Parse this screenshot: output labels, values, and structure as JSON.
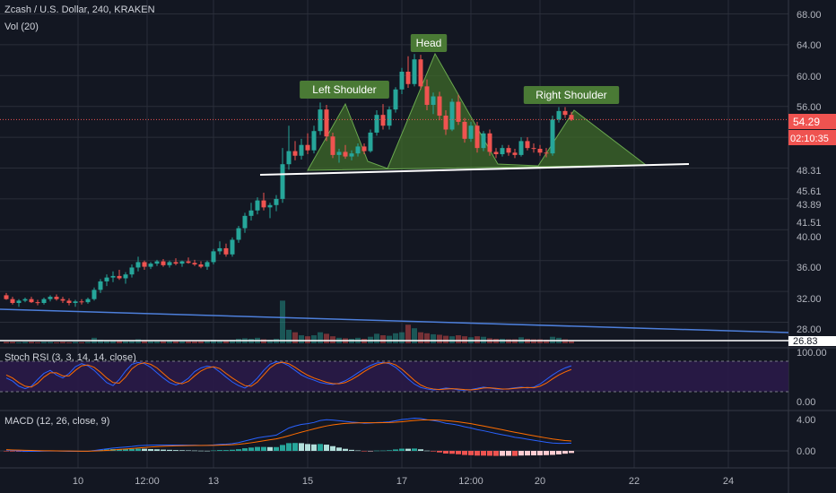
{
  "header": {
    "title": "Zcash / U.S. Dollar, 240, KRAKEN",
    "volume_label": "Vol (20)"
  },
  "panes": {
    "stoch_label": "Stoch RSI (3, 3, 14, 14, close)",
    "macd_label": "MACD (12, 26, close, 9)"
  },
  "annotations": {
    "head": "Head",
    "left_shoulder": "Left Shoulder",
    "right_shoulder": "Right Shoulder"
  },
  "price_axis": {
    "ticks": [
      "68.00",
      "64.00",
      "60.00",
      "56.00",
      "48.31",
      "45.61",
      "43.89",
      "41.51",
      "40.00",
      "36.00",
      "32.00",
      "28.00"
    ],
    "last_price": "54.29",
    "countdown": "02:10:35",
    "volume_level": "26.83"
  },
  "stoch_axis": {
    "ticks": [
      "100.00",
      "0.00"
    ]
  },
  "macd_axis": {
    "ticks": [
      "4.00",
      "0.00"
    ]
  },
  "time_axis": {
    "labels": [
      "10",
      "12:00",
      "13",
      "15",
      "17",
      "12:00",
      "20",
      "22",
      "24"
    ]
  },
  "colors": {
    "background": "#131722",
    "grid": "#2a2e39",
    "up": "#26a69a",
    "down": "#ef5350",
    "pattern_fill": "#3f6b2a",
    "label_bg": "#4a7a35",
    "trend_blue": "#4d7fdb",
    "neckline": "#ffffff",
    "stoch_band": "#2a1a48",
    "price_badge": "#ef5350"
  },
  "chart_data": {
    "type": "candlestick",
    "title": "Zcash / U.S. Dollar, 240, KRAKEN",
    "price_range": [
      27,
      69
    ],
    "interval": "240",
    "pattern": "Head and Shoulders",
    "candles": [
      [
        31.5,
        31.8,
        30.9,
        31.0
      ],
      [
        31.0,
        31.3,
        30.3,
        30.5
      ],
      [
        30.5,
        31.0,
        30.0,
        30.8
      ],
      [
        30.8,
        31.2,
        30.6,
        31.0
      ],
      [
        31.0,
        31.3,
        30.5,
        30.6
      ],
      [
        30.6,
        30.9,
        30.2,
        30.5
      ],
      [
        30.5,
        31.2,
        30.3,
        31.0
      ],
      [
        31.0,
        31.5,
        30.7,
        31.3
      ],
      [
        31.3,
        31.6,
        30.8,
        31.0
      ],
      [
        31.0,
        31.3,
        30.5,
        30.8
      ],
      [
        30.8,
        31.1,
        30.2,
        30.5
      ],
      [
        30.5,
        30.9,
        30.0,
        30.7
      ],
      [
        30.7,
        31.0,
        30.3,
        30.6
      ],
      [
        30.6,
        31.2,
        30.4,
        31.0
      ],
      [
        31.0,
        32.5,
        30.8,
        32.2
      ],
      [
        32.2,
        33.6,
        31.8,
        33.3
      ],
      [
        33.3,
        34.2,
        32.7,
        33.8
      ],
      [
        33.8,
        34.6,
        33.2,
        34.0
      ],
      [
        34.0,
        34.8,
        33.5,
        33.7
      ],
      [
        33.7,
        34.5,
        33.0,
        34.2
      ],
      [
        34.2,
        35.5,
        33.8,
        35.1
      ],
      [
        35.1,
        36.5,
        34.6,
        35.8
      ],
      [
        35.8,
        36.0,
        34.8,
        35.2
      ],
      [
        35.2,
        35.8,
        34.9,
        35.6
      ],
      [
        35.6,
        36.1,
        35.3,
        35.9
      ],
      [
        35.9,
        36.2,
        35.2,
        35.4
      ],
      [
        35.4,
        36.0,
        35.1,
        35.8
      ],
      [
        35.8,
        36.3,
        35.4,
        35.6
      ],
      [
        35.6,
        36.0,
        35.2,
        35.9
      ],
      [
        35.9,
        36.4,
        35.6,
        35.7
      ],
      [
        35.7,
        36.1,
        35.3,
        35.5
      ],
      [
        35.5,
        35.9,
        35.0,
        35.2
      ],
      [
        35.2,
        36.0,
        34.8,
        35.8
      ],
      [
        35.8,
        37.5,
        35.5,
        37.2
      ],
      [
        37.2,
        38.5,
        36.8,
        37.6
      ],
      [
        37.6,
        38.2,
        36.5,
        36.8
      ],
      [
        36.8,
        39.0,
        36.5,
        38.7
      ],
      [
        38.7,
        40.5,
        38.3,
        40.2
      ],
      [
        40.2,
        42.2,
        39.6,
        41.8
      ],
      [
        41.8,
        43.5,
        41.2,
        42.5
      ],
      [
        42.5,
        44.2,
        42.0,
        43.8
      ],
      [
        43.8,
        44.8,
        42.5,
        42.9
      ],
      [
        42.9,
        43.5,
        41.5,
        43.2
      ],
      [
        43.2,
        44.5,
        42.4,
        44.0
      ],
      [
        44.0,
        50.6,
        43.5,
        48.5
      ],
      [
        48.5,
        53.5,
        47.8,
        50.2
      ],
      [
        50.2,
        51.5,
        49.0,
        49.6
      ],
      [
        49.6,
        51.8,
        49.1,
        51.0
      ],
      [
        51.0,
        52.5,
        49.8,
        50.3
      ],
      [
        50.3,
        53.5,
        49.9,
        52.8
      ],
      [
        52.8,
        56.5,
        52.3,
        55.6
      ],
      [
        55.6,
        56.2,
        51.5,
        52.1
      ],
      [
        52.1,
        52.6,
        49.3,
        49.7
      ],
      [
        49.7,
        50.5,
        48.7,
        50.1
      ],
      [
        50.1,
        51.0,
        49.2,
        49.5
      ],
      [
        49.5,
        50.3,
        49.0,
        49.9
      ],
      [
        49.9,
        51.2,
        49.5,
        50.8
      ],
      [
        50.8,
        51.2,
        49.8,
        50.2
      ],
      [
        50.2,
        53.0,
        50.0,
        52.6
      ],
      [
        52.6,
        55.5,
        52.2,
        54.9
      ],
      [
        54.9,
        56.3,
        53.0,
        53.5
      ],
      [
        53.5,
        56.0,
        53.0,
        55.6
      ],
      [
        55.6,
        58.5,
        55.2,
        58.2
      ],
      [
        58.2,
        61.0,
        57.6,
        60.5
      ],
      [
        60.5,
        62.5,
        58.4,
        58.9
      ],
      [
        58.9,
        62.8,
        58.6,
        62.1
      ],
      [
        62.1,
        62.7,
        58.2,
        58.6
      ],
      [
        58.6,
        59.5,
        55.5,
        56.2
      ],
      [
        56.2,
        57.8,
        55.0,
        57.3
      ],
      [
        57.3,
        57.9,
        54.2,
        54.8
      ],
      [
        54.8,
        55.5,
        52.3,
        53.0
      ],
      [
        53.0,
        57.0,
        52.8,
        56.6
      ],
      [
        56.6,
        57.5,
        53.6,
        54.0
      ],
      [
        54.0,
        54.5,
        51.3,
        51.8
      ],
      [
        51.8,
        54.0,
        51.4,
        53.5
      ],
      [
        53.5,
        54.0,
        50.0,
        50.6
      ],
      [
        50.6,
        52.8,
        50.2,
        52.5
      ],
      [
        52.5,
        53.0,
        49.6,
        50.1
      ],
      [
        50.1,
        50.6,
        49.3,
        49.8
      ],
      [
        49.8,
        51.0,
        49.5,
        50.6
      ],
      [
        50.6,
        51.0,
        49.6,
        50.0
      ],
      [
        50.0,
        50.5,
        49.3,
        49.7
      ],
      [
        49.7,
        52.0,
        49.5,
        51.5
      ],
      [
        51.5,
        52.0,
        50.3,
        50.6
      ],
      [
        50.6,
        51.2,
        50.0,
        50.5
      ],
      [
        50.5,
        51.0,
        49.6,
        50.0
      ],
      [
        50.0,
        50.6,
        49.4,
        49.9
      ],
      [
        49.9,
        54.8,
        49.6,
        54.3
      ],
      [
        54.3,
        55.9,
        53.9,
        55.4
      ],
      [
        55.4,
        55.9,
        54.5,
        54.9
      ],
      [
        54.9,
        55.3,
        54.1,
        54.29
      ]
    ],
    "volume": [
      3,
      3,
      2,
      3,
      3,
      2,
      3,
      3,
      2,
      3,
      2,
      3,
      2,
      3,
      11,
      7,
      6,
      5,
      5,
      4,
      6,
      8,
      5,
      4,
      4,
      4,
      5,
      4,
      4,
      4,
      4,
      4,
      5,
      7,
      6,
      5,
      7,
      9,
      10,
      9,
      11,
      8,
      7,
      9,
      85,
      27,
      22,
      16,
      14,
      16,
      22,
      19,
      14,
      11,
      10,
      9,
      11,
      9,
      13,
      19,
      16,
      15,
      20,
      22,
      37,
      30,
      22,
      20,
      18,
      17,
      15,
      14,
      16,
      14,
      12,
      14,
      13,
      10,
      9,
      9,
      8,
      8,
      12,
      9,
      8,
      8,
      7,
      13,
      11,
      8,
      6
    ],
    "stoch_rsi": {
      "axis_range": [
        0,
        100
      ],
      "k": [
        45,
        35,
        18,
        10,
        18,
        40,
        60,
        70,
        55,
        45,
        60,
        82,
        92,
        85,
        70,
        50,
        30,
        20,
        40,
        68,
        90,
        96,
        92,
        80,
        62,
        45,
        30,
        22,
        30,
        44,
        66,
        78,
        84,
        80,
        65,
        48,
        32,
        20,
        12,
        25,
        45,
        70,
        90,
        98,
        95,
        85,
        70,
        55,
        45,
        38,
        30,
        26,
        24,
        28,
        36,
        48,
        62,
        75,
        86,
        94,
        96,
        92,
        80,
        62,
        42,
        25,
        14,
        9,
        6,
        8,
        12,
        10,
        6,
        5,
        7,
        11,
        15,
        12,
        9,
        8,
        10,
        13,
        15,
        12,
        15,
        25,
        40,
        55,
        68,
        78,
        85
      ],
      "d": [
        55,
        45,
        30,
        18,
        15,
        28,
        48,
        62,
        62,
        52,
        52,
        70,
        85,
        88,
        80,
        64,
        45,
        30,
        28,
        48,
        75,
        90,
        95,
        90,
        78,
        60,
        42,
        30,
        26,
        34,
        52,
        68,
        78,
        82,
        76,
        60,
        45,
        32,
        20,
        18,
        32,
        55,
        78,
        92,
        97,
        92,
        80,
        66,
        54,
        45,
        38,
        31,
        27,
        26,
        30,
        40,
        52,
        66,
        78,
        88,
        94,
        95,
        88,
        74,
        56,
        37,
        22,
        13,
        9,
        7,
        9,
        10,
        9,
        7,
        6,
        8,
        12,
        13,
        11,
        9,
        9,
        11,
        13,
        14,
        13,
        18,
        28,
        42,
        55,
        65,
        73
      ]
    },
    "macd": {
      "axis_range": [
        -1.5,
        5
      ],
      "macd_line": [
        0.1,
        0.05,
        0.0,
        -0.05,
        -0.05,
        -0.05,
        -0.03,
        -0.02,
        -0.02,
        -0.03,
        -0.05,
        -0.06,
        -0.06,
        -0.05,
        0.05,
        0.15,
        0.25,
        0.35,
        0.42,
        0.48,
        0.55,
        0.65,
        0.7,
        0.72,
        0.74,
        0.74,
        0.74,
        0.74,
        0.74,
        0.73,
        0.72,
        0.7,
        0.7,
        0.75,
        0.82,
        0.85,
        0.92,
        1.05,
        1.25,
        1.45,
        1.65,
        1.78,
        1.88,
        2.0,
        2.45,
        2.9,
        3.15,
        3.35,
        3.45,
        3.6,
        3.85,
        3.95,
        3.9,
        3.82,
        3.74,
        3.65,
        3.6,
        3.5,
        3.52,
        3.6,
        3.62,
        3.68,
        3.82,
        3.98,
        4.05,
        4.15,
        4.1,
        3.95,
        3.85,
        3.7,
        3.5,
        3.4,
        3.25,
        3.05,
        2.9,
        2.7,
        2.55,
        2.38,
        2.2,
        2.05,
        1.9,
        1.72,
        1.62,
        1.48,
        1.35,
        1.22,
        1.1,
        1.0,
        0.95,
        0.95,
        0.98
      ],
      "signal_line": [
        0.15,
        0.12,
        0.1,
        0.07,
        0.05,
        0.03,
        0.02,
        0.01,
        0.0,
        -0.01,
        -0.02,
        -0.03,
        -0.04,
        -0.04,
        -0.02,
        0.01,
        0.06,
        0.12,
        0.18,
        0.24,
        0.3,
        0.37,
        0.43,
        0.49,
        0.54,
        0.58,
        0.61,
        0.64,
        0.66,
        0.67,
        0.68,
        0.68,
        0.69,
        0.7,
        0.72,
        0.75,
        0.78,
        0.84,
        0.92,
        1.03,
        1.15,
        1.28,
        1.4,
        1.52,
        1.7,
        1.92,
        2.15,
        2.37,
        2.58,
        2.78,
        2.98,
        3.16,
        3.3,
        3.4,
        3.48,
        3.52,
        3.55,
        3.56,
        3.56,
        3.57,
        3.58,
        3.6,
        3.64,
        3.7,
        3.78,
        3.85,
        3.9,
        3.92,
        3.92,
        3.89,
        3.84,
        3.77,
        3.68,
        3.57,
        3.45,
        3.3,
        3.15,
        3.0,
        2.84,
        2.68,
        2.52,
        2.36,
        2.21,
        2.06,
        1.92,
        1.78,
        1.64,
        1.51,
        1.4,
        1.31,
        1.25
      ],
      "histogram": [
        -0.05,
        -0.07,
        -0.1,
        -0.12,
        -0.1,
        -0.08,
        -0.05,
        -0.03,
        -0.02,
        -0.02,
        -0.03,
        -0.03,
        -0.02,
        -0.01,
        0.07,
        0.14,
        0.19,
        0.23,
        0.24,
        0.24,
        0.25,
        0.28,
        0.27,
        0.23,
        0.2,
        0.16,
        0.13,
        0.1,
        0.08,
        0.06,
        0.04,
        0.02,
        0.01,
        0.05,
        0.1,
        0.1,
        0.14,
        0.21,
        0.33,
        0.42,
        0.5,
        0.5,
        0.48,
        0.48,
        0.75,
        0.98,
        1.0,
        0.98,
        0.87,
        0.82,
        0.87,
        0.79,
        0.6,
        0.42,
        0.26,
        0.13,
        0.05,
        -0.06,
        -0.04,
        0.03,
        0.04,
        0.08,
        0.18,
        0.28,
        0.27,
        0.3,
        0.2,
        0.03,
        -0.07,
        -0.19,
        -0.34,
        -0.37,
        -0.43,
        -0.52,
        -0.55,
        -0.6,
        -0.6,
        -0.62,
        -0.64,
        -0.63,
        -0.62,
        -0.64,
        -0.59,
        -0.58,
        -0.57,
        -0.56,
        -0.54,
        -0.51,
        -0.45,
        -0.36,
        -0.27
      ]
    },
    "time_labels": [
      "10",
      "12:00",
      "13",
      "15",
      "17",
      "12:00",
      "20",
      "22",
      "24"
    ]
  }
}
